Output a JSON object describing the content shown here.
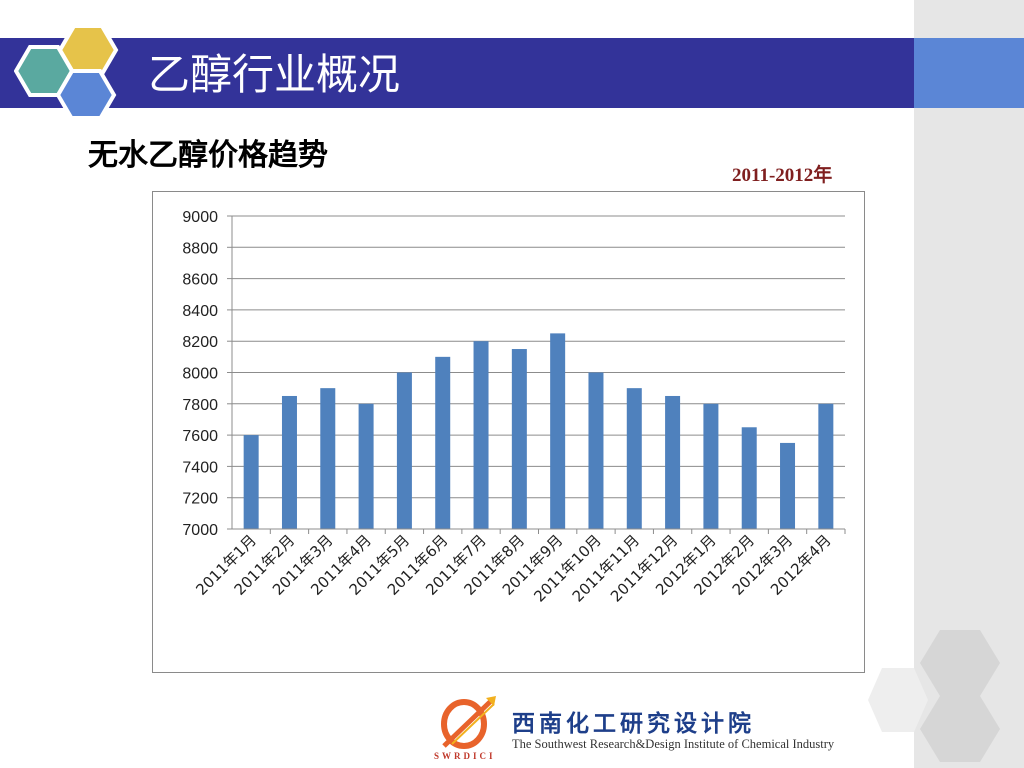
{
  "slide": {
    "title": "乙醇行业概况",
    "subtitle": "无水乙醇价格趋势",
    "year_range": "2011-2012年",
    "colors": {
      "title_bar": "#333399",
      "title_accent": "#5b86d6",
      "bar": "#4f81bd",
      "hex_yellow": "#e6c34a",
      "hex_teal": "#5aa9a0",
      "hex_blue": "#5b86d6"
    }
  },
  "footer": {
    "institute_cn": "西南化工研究设计院",
    "institute_en": "The Southwest Research&Design Institute of Chemical Industry",
    "logo_abbr": "SWRDICI"
  },
  "chart_data": {
    "type": "bar",
    "title": "",
    "xlabel": "",
    "ylabel": "",
    "ylim": [
      7000,
      9000
    ],
    "yticks": [
      7000,
      7200,
      7400,
      7600,
      7800,
      8000,
      8200,
      8400,
      8600,
      8800,
      9000
    ],
    "grid": true,
    "legend": "none",
    "categories": [
      "2011年1月",
      "2011年2月",
      "2011年3月",
      "2011年4月",
      "2011年5月",
      "2011年6月",
      "2011年7月",
      "2011年8月",
      "2011年9月",
      "2011年10月",
      "2011年11月",
      "2011年12月",
      "2012年1月",
      "2012年2月",
      "2012年3月",
      "2012年4月"
    ],
    "values": [
      7600,
      7850,
      7900,
      7800,
      8000,
      8100,
      8200,
      8150,
      8250,
      8000,
      7900,
      7850,
      7800,
      7650,
      7550,
      7800
    ]
  }
}
